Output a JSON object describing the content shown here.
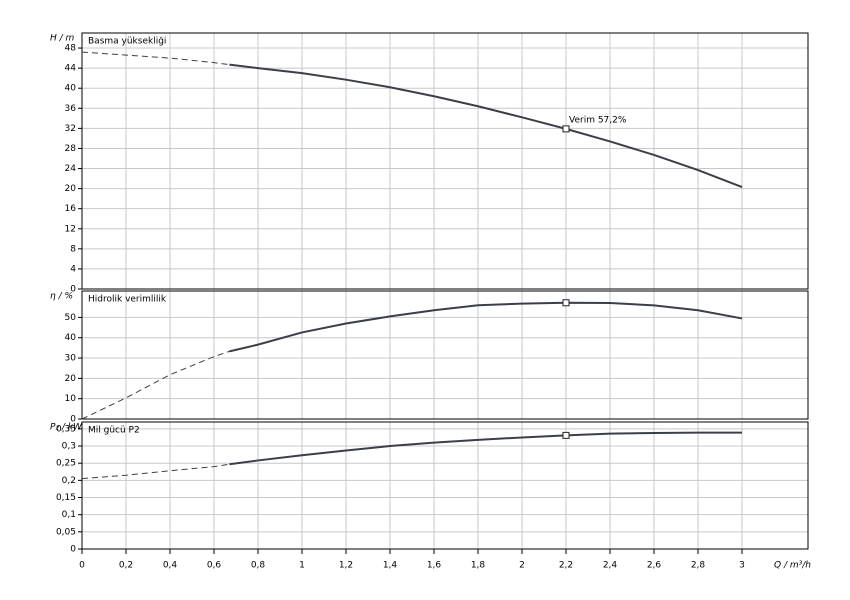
{
  "chart_data": [
    {
      "type": "line",
      "y_label": "H / m",
      "panel_label": "Basma yüksekliği",
      "annotation": "Verim  57,2%",
      "x": [
        0,
        0.2,
        0.4,
        0.6,
        0.67,
        0.8,
        1.0,
        1.2,
        1.4,
        1.6,
        1.8,
        2.0,
        2.2,
        2.4,
        2.6,
        2.8,
        3.0
      ],
      "xlim": [
        0,
        3.3
      ],
      "ylim": [
        0,
        51
      ],
      "yticks": [
        0,
        4,
        8,
        12,
        16,
        20,
        24,
        28,
        32,
        36,
        40,
        44,
        48
      ],
      "grid": true,
      "series": [
        {
          "style": "dashed",
          "color": "#3a3f4a",
          "values": [
            47.2,
            46.6,
            46.0,
            45.1,
            44.7,
            null,
            null,
            null,
            null,
            null,
            null,
            null,
            null,
            null,
            null,
            null,
            null
          ]
        },
        {
          "style": "solid",
          "color": "#3a3f4a",
          "values": [
            null,
            null,
            null,
            null,
            44.7,
            44.0,
            43.0,
            41.7,
            40.2,
            38.4,
            36.4,
            34.2,
            31.9,
            29.4,
            26.7,
            23.7,
            20.3
          ]
        }
      ],
      "marker": {
        "x": 2.2,
        "value": 31.9
      }
    },
    {
      "type": "line",
      "y_label": "η / %",
      "panel_label": "Hidrolik verimlilik",
      "x": [
        0,
        0.2,
        0.4,
        0.6,
        0.67,
        0.8,
        1.0,
        1.2,
        1.4,
        1.6,
        1.8,
        2.0,
        2.2,
        2.4,
        2.6,
        2.8,
        3.0
      ],
      "xlim": [
        0,
        3.3
      ],
      "ylim": [
        0,
        63
      ],
      "yticks": [
        0,
        10,
        20,
        30,
        40,
        50
      ],
      "grid": true,
      "series": [
        {
          "style": "dashed",
          "color": "#3a3f4a",
          "values": [
            0,
            10.4,
            21.8,
            30.7,
            33.3,
            null,
            null,
            null,
            null,
            null,
            null,
            null,
            null,
            null,
            null,
            null,
            null
          ]
        },
        {
          "style": "solid",
          "color": "#3a3f4a",
          "values": [
            null,
            null,
            null,
            null,
            33.3,
            36.6,
            42.6,
            47,
            50.5,
            53.5,
            56,
            56.8,
            57.2,
            57.1,
            55.9,
            53.5,
            49.5
          ]
        }
      ],
      "marker": {
        "x": 2.2,
        "value": 57.2
      }
    },
    {
      "type": "line",
      "y_label": "P₂ / kW",
      "panel_label": "Mil gücü P2",
      "x_label": "Q / m³/h",
      "x": [
        0,
        0.2,
        0.4,
        0.6,
        0.67,
        0.8,
        1.0,
        1.2,
        1.4,
        1.6,
        1.8,
        2.0,
        2.2,
        2.4,
        2.6,
        2.8,
        3.0
      ],
      "xlim": [
        0,
        3.3
      ],
      "ylim": [
        0,
        0.37
      ],
      "xticks": [
        0,
        {
          "value": 0.2,
          "label": "0,2"
        },
        {
          "value": 0.4,
          "label": "0,4"
        },
        {
          "value": 0.6,
          "label": "0,6"
        },
        {
          "value": 0.8,
          "label": "0,8"
        },
        1,
        {
          "value": 1.2,
          "label": "1,2"
        },
        {
          "value": 1.4,
          "label": "1,4"
        },
        {
          "value": 1.6,
          "label": "1,6"
        },
        {
          "value": 1.8,
          "label": "1,8"
        },
        2,
        {
          "value": 2.2,
          "label": "2,2"
        },
        {
          "value": 2.4,
          "label": "2,4"
        },
        {
          "value": 2.6,
          "label": "2,6"
        },
        {
          "value": 2.8,
          "label": "2,8"
        },
        3
      ],
      "yticks": [
        0,
        {
          "value": 0.05,
          "label": "0,05"
        },
        {
          "value": 0.1,
          "label": "0,1"
        },
        {
          "value": 0.15,
          "label": "0,15"
        },
        {
          "value": 0.2,
          "label": "0,2"
        },
        {
          "value": 0.25,
          "label": "0,25"
        },
        {
          "value": 0.3,
          "label": "0,3"
        },
        {
          "value": 0.35,
          "label": "0,35"
        }
      ],
      "grid": true,
      "series": [
        {
          "style": "dashed",
          "color": "#3a3f4a",
          "values": [
            0.205,
            0.215,
            0.228,
            0.24,
            0.247,
            null,
            null,
            null,
            null,
            null,
            null,
            null,
            null,
            null,
            null,
            null,
            null
          ]
        },
        {
          "style": "solid",
          "color": "#3a3f4a",
          "values": [
            null,
            null,
            null,
            null,
            0.247,
            0.258,
            0.273,
            0.287,
            0.3,
            0.31,
            0.318,
            0.325,
            0.331,
            0.336,
            0.338,
            0.339,
            0.339
          ]
        }
      ],
      "marker": {
        "x": 2.2,
        "value": 0.331
      }
    }
  ]
}
